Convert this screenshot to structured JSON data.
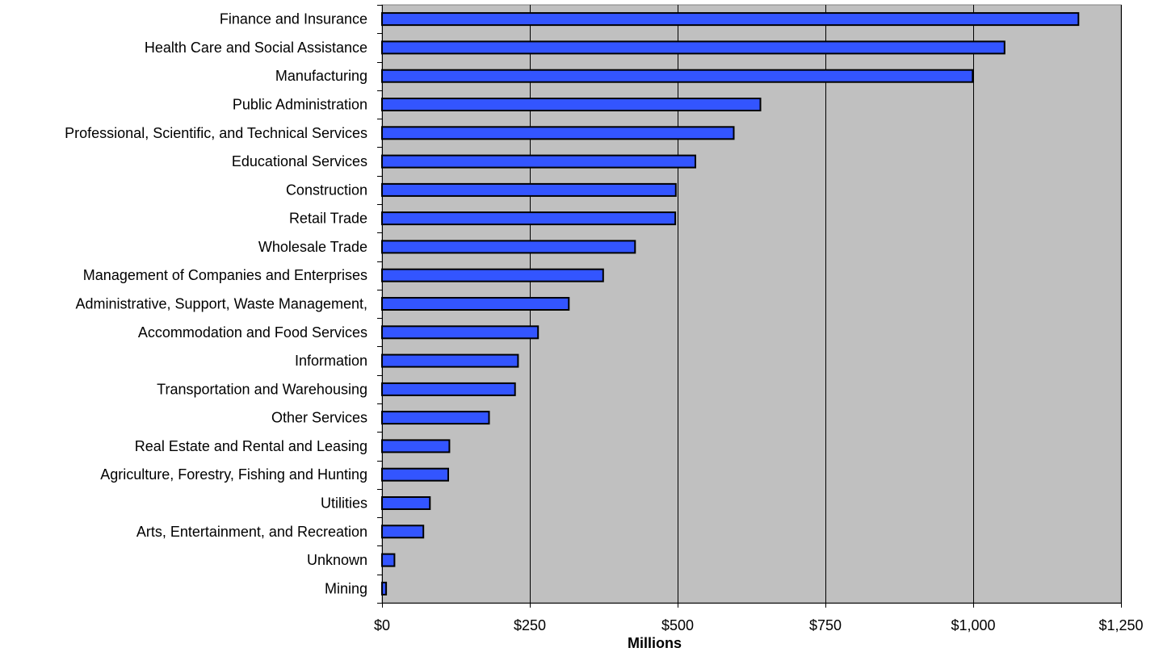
{
  "chart_data": {
    "type": "bar",
    "orientation": "horizontal",
    "categories": [
      "Finance and Insurance",
      "Health Care and Social Assistance",
      "Manufacturing",
      "Public Administration",
      "Professional, Scientific, and Technical Services",
      "Educational Services",
      "Construction",
      "Retail Trade",
      "Wholesale Trade",
      "Management of Companies and Enterprises",
      "Administrative, Support, Waste Management,",
      "Accommodation and Food Services",
      "Information",
      "Transportation and Warehousing",
      "Other Services",
      "Real Estate and Rental and Leasing",
      "Agriculture, Forestry, Fishing and Hunting",
      "Utilities",
      "Arts, Entertainment, and Recreation",
      "Unknown",
      "Mining"
    ],
    "values": [
      1178,
      1053,
      999,
      640,
      595,
      530,
      497,
      496,
      428,
      374,
      316,
      264,
      230,
      225,
      181,
      114,
      112,
      81,
      70,
      21,
      7
    ],
    "xlabel": "Millions",
    "ylabel": "",
    "xlim": [
      0,
      1250
    ],
    "xticks": [
      0,
      250,
      500,
      750,
      1000,
      1250
    ],
    "xtick_labels": [
      "$0",
      "$250",
      "$500",
      "$750",
      "$1,000",
      "$1,250"
    ],
    "grid": "vertical",
    "legend": "none",
    "colors": {
      "bar_fill": "#3355ff",
      "bar_stroke": "#000000",
      "plot_background": "#c0c0c0",
      "gridline": "#000000"
    }
  }
}
